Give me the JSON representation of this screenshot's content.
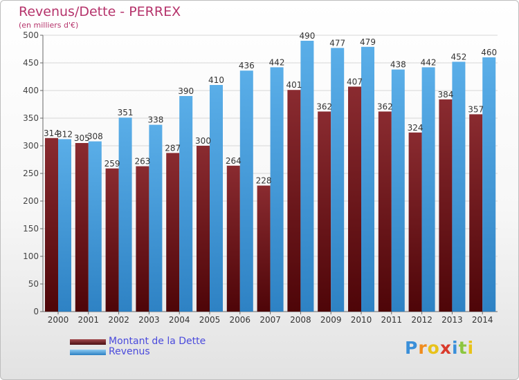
{
  "chart_data": {
    "type": "bar",
    "title": "Revenus/Dette - PERREX",
    "subtitle": "(en milliers d'€)",
    "categories": [
      "2000",
      "2001",
      "2002",
      "2003",
      "2004",
      "2005",
      "2006",
      "2007",
      "2008",
      "2009",
      "2010",
      "2011",
      "2012",
      "2013",
      "2014"
    ],
    "series": [
      {
        "name": "Montant de la Dette",
        "color": "#7a2226",
        "values": [
          314,
          305,
          259,
          263,
          287,
          300,
          264,
          228,
          401,
          362,
          407,
          362,
          324,
          384,
          357
        ]
      },
      {
        "name": "Revenus",
        "color": "#4ea3e0",
        "values": [
          312,
          308,
          351,
          338,
          390,
          410,
          436,
          442,
          490,
          477,
          479,
          438,
          442,
          452,
          460
        ]
      }
    ],
    "ylim": [
      0,
      500
    ],
    "yticks": [
      0,
      50,
      100,
      150,
      200,
      250,
      300,
      350,
      400,
      450,
      500
    ],
    "grid": true,
    "legend_position": "bottom-left"
  },
  "logo": {
    "text": "Proxiti",
    "letter_colors": [
      "#3a8fd9",
      "#f08c1e",
      "#e8c21a",
      "#d93a2b",
      "#3a8fd9",
      "#8cc63f",
      "#e8c21a"
    ]
  }
}
